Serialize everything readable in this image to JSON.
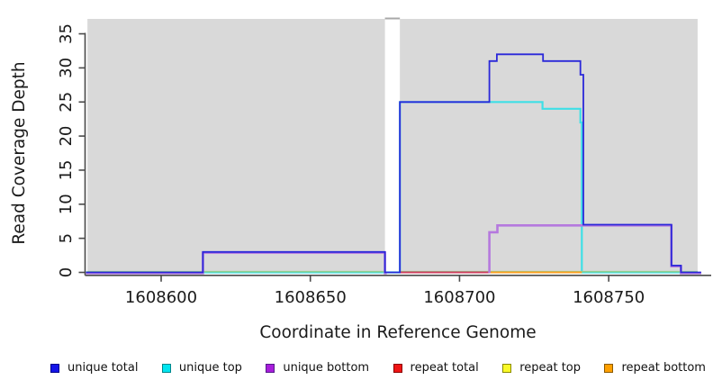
{
  "chart_data": {
    "type": "line",
    "subtype": "step-coverage",
    "title": "",
    "xlabel": "Coordinate in Reference Genome",
    "ylabel": "Read Coverage Depth",
    "xlim": [
      1608574.5,
      1608784
    ],
    "ylim": [
      0,
      37.2
    ],
    "xticks": [
      1608600,
      1608650,
      1608700,
      1608750
    ],
    "yticks": [
      0,
      5,
      10,
      15,
      20,
      25,
      30,
      35
    ],
    "grid": false,
    "plot_bg_color": "#d9d9d9",
    "axis_color": "#4a4a4a",
    "regions": [
      {
        "x0": 1608575.3,
        "x1": 1608675
      },
      {
        "x0": 1608680,
        "x1": 1608779.8
      }
    ],
    "gap": {
      "x0": 1608675,
      "x1": 1608680,
      "top_border_color": "#a8a8a8"
    },
    "baseline": {
      "color": "#8fcf8f",
      "value": 0,
      "segments": [
        [
          1608575.3,
          1608675
        ],
        [
          1608680,
          1608779.8
        ]
      ]
    },
    "series": [
      {
        "name": "unique total",
        "color": "#2b28d9",
        "width": 1.8,
        "paths": [
          {
            "steps": [
              [
                1608574.8,
                0
              ],
              [
                1608614,
                3
              ],
              [
                1608675,
                0
              ],
              [
                1608680,
                25
              ],
              [
                1608710,
                31
              ],
              [
                1608712.5,
                32
              ],
              [
                1608728,
                31
              ],
              [
                1608740.5,
                29
              ],
              [
                1608741.5,
                7
              ],
              [
                1608771,
                1
              ],
              [
                1608774.2,
                0
              ]
            ],
            "end": 1608781
          }
        ]
      },
      {
        "name": "unique top",
        "color": "#3fdfe6",
        "width": 2.2,
        "paths": [
          {
            "steps": [
              [
                1608574.8,
                0
              ],
              [
                1608680,
                25
              ],
              [
                1608727.8,
                24
              ],
              [
                1608740.5,
                22
              ],
              [
                1608741,
                0
              ]
            ],
            "end": 1608779
          }
        ]
      },
      {
        "name": "unique bottom",
        "color": "#b579de",
        "width": 2.6,
        "dy": 0.8,
        "paths": [
          {
            "steps": [
              [
                1608574.8,
                0
              ],
              [
                1608614,
                3
              ],
              [
                1608675,
                0
              ]
            ],
            "end": 1608675.6
          },
          {
            "steps": [
              [
                1608710,
                0
              ],
              [
                1608710,
                6
              ],
              [
                1608712.7,
                7
              ],
              [
                1608771,
                1
              ],
              [
                1608774.2,
                0
              ]
            ],
            "end": 1608781
          }
        ]
      },
      {
        "name": "repeat total",
        "color": "#cf4060",
        "width": 2,
        "paths": [
          {
            "steps": [
              [
                1608680,
                0
              ]
            ],
            "end": 1608710
          }
        ]
      },
      {
        "name": "repeat top",
        "color": "#f5ec2e",
        "width": 2,
        "paths": []
      },
      {
        "name": "repeat bottom",
        "color": "#ffa125",
        "width": 2,
        "paths": [
          {
            "steps": [
              [
                1608710,
                0
              ]
            ],
            "end": 1608741
          }
        ]
      }
    ],
    "draw_order": [
      "unique top",
      "baseline",
      "repeat total",
      "repeat bottom",
      "unique bottom",
      "unique total"
    ]
  },
  "legend": {
    "items": [
      {
        "label": "unique total",
        "fill": "#1414e8",
        "border": "#00008b"
      },
      {
        "label": "unique top",
        "fill": "#00e5f0",
        "border": "#00868b"
      },
      {
        "label": "unique bottom",
        "fill": "#a81ddb",
        "border": "#551a8b"
      },
      {
        "label": "repeat total",
        "fill": "#f01414",
        "border": "#8b0000"
      },
      {
        "label": "repeat top",
        "fill": "#fafa28",
        "border": "#8b8b00"
      },
      {
        "label": "repeat bottom",
        "fill": "#ffa000",
        "border": "#8b5a00"
      }
    ]
  }
}
